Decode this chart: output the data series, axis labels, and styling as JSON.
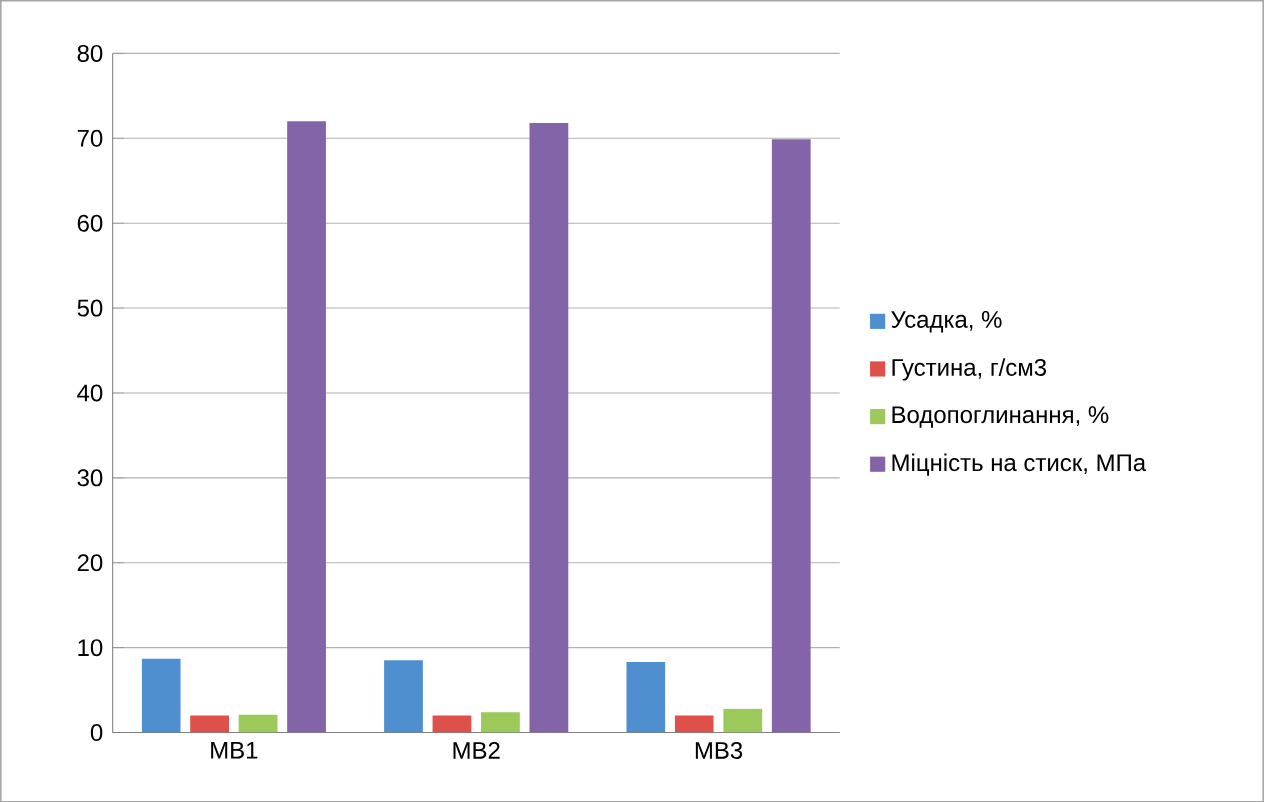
{
  "chart_data": {
    "type": "bar",
    "categories": [
      "МВ1",
      "МВ2",
      "МВ3"
    ],
    "series": [
      {
        "name": "Усадка, %",
        "color": "#4f8fd0",
        "values": [
          8.7,
          8.5,
          8.3
        ]
      },
      {
        "name": "Густина, г/см3",
        "color": "#e0504a",
        "values": [
          2.0,
          2.0,
          2.0
        ]
      },
      {
        "name": "Водопоглинання, %",
        "color": "#9bc95a",
        "values": [
          2.1,
          2.4,
          2.8
        ]
      },
      {
        "name": "Міцність на стиск, МПа",
        "color": "#8464a8",
        "values": [
          72.0,
          71.8,
          69.9
        ]
      }
    ],
    "ylim": [
      0,
      80
    ],
    "yticks": [
      0,
      10,
      20,
      30,
      40,
      50,
      60,
      70,
      80
    ],
    "grid": "y",
    "legend": "right"
  }
}
